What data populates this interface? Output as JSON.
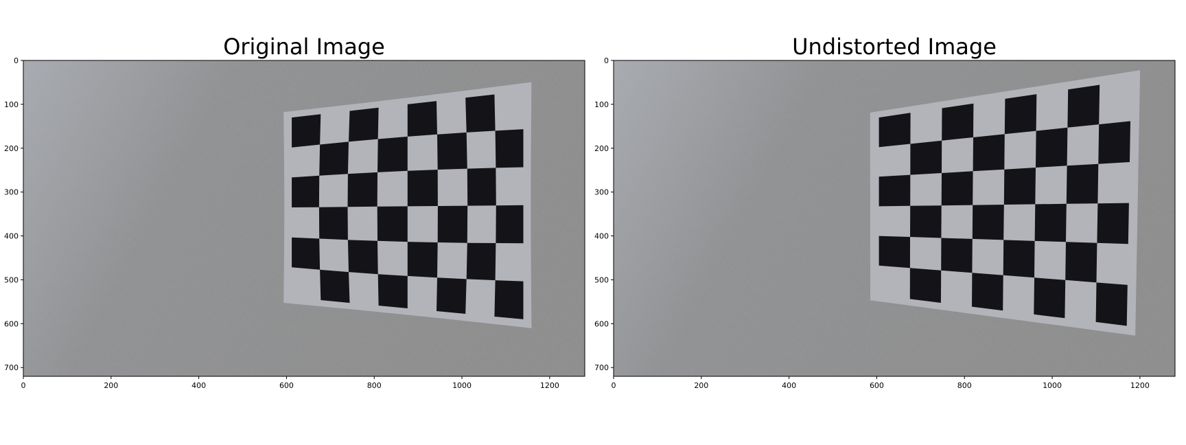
{
  "panels": [
    {
      "id": "original",
      "title": "Original Image",
      "x_ticks": [
        "0",
        "200",
        "400",
        "600",
        "800",
        "1000",
        "1200"
      ],
      "y_ticks": [
        "0",
        "100",
        "200",
        "300",
        "400",
        "500",
        "600",
        "700"
      ],
      "xlim": [
        0,
        1280
      ],
      "ylim": [
        0,
        720
      ],
      "board": {
        "cols": 8,
        "rows": 6,
        "corners_data_units": [
          [
            612,
            130
          ],
          [
            1140,
            70
          ],
          [
            1140,
            590
          ],
          [
            612,
            540
          ]
        ],
        "bulge": "barrel"
      }
    },
    {
      "id": "undistorted",
      "title": "Undistorted Image",
      "x_ticks": [
        "0",
        "200",
        "400",
        "600",
        "800",
        "1000",
        "1200"
      ],
      "y_ticks": [
        "0",
        "100",
        "200",
        "300",
        "400",
        "500",
        "600",
        "700"
      ],
      "xlim": [
        0,
        1280
      ],
      "ylim": [
        0,
        720
      ],
      "board": {
        "cols": 8,
        "rows": 6,
        "corners_data_units": [
          [
            605,
            130
          ],
          [
            1180,
            45
          ],
          [
            1170,
            605
          ],
          [
            605,
            535
          ]
        ],
        "bulge": "none"
      }
    }
  ],
  "colors": {
    "wall": "#8f9092",
    "wall_light": "#a7aab0",
    "paper": "#b3b4ba",
    "square": "#141418",
    "axis": "#000000"
  }
}
